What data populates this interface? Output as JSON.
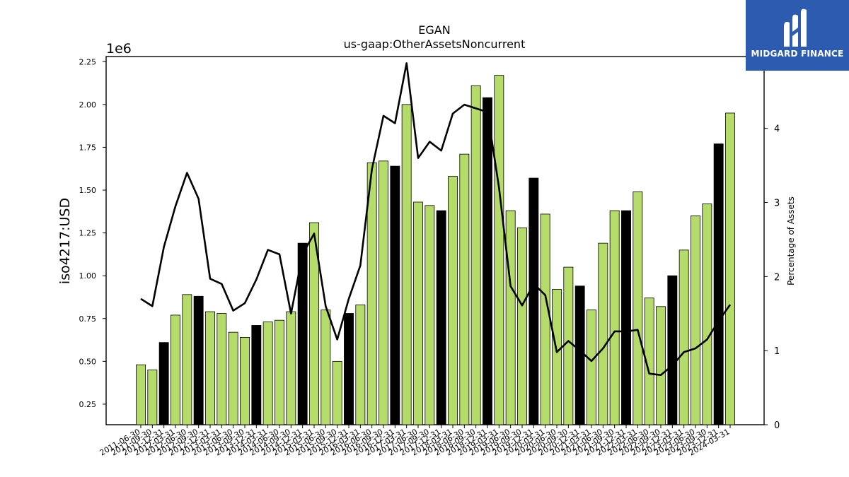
{
  "chart_data": {
    "type": "bar",
    "title": "EGAN",
    "subtitle": "us-gaap:OtherAssetsNoncurrent",
    "ylabel": "iso4217:USD",
    "y2label": "Percentage of Assets",
    "offset_text": "1e6",
    "ylim": [
      0.13,
      2.28
    ],
    "y2lim": [
      0,
      4.97
    ],
    "yticks": [
      "0.25",
      "0.50",
      "0.75",
      "1.00",
      "1.25",
      "1.50",
      "1.75",
      "2.00",
      "2.25"
    ],
    "y2ticks": [
      "0",
      "1",
      "2",
      "3",
      "4"
    ],
    "colors": {
      "quarterly": "#b5dc6a",
      "annual": "#000000",
      "line": "#000000"
    },
    "categories": [
      "2011-06-30",
      "2011-09-30",
      "2011-12-31",
      "2012-03-31",
      "2012-06-30",
      "2012-09-30",
      "2012-12-31",
      "2013-03-31",
      "2013-06-30",
      "2013-09-30",
      "2013-12-31",
      "2014-03-31",
      "2014-06-30",
      "2014-09-30",
      "2014-12-31",
      "2015-03-31",
      "2015-06-30",
      "2015-09-30",
      "2015-12-31",
      "2016-03-31",
      "2016-06-30",
      "2016-09-30",
      "2016-12-31",
      "2017-03-31",
      "2017-06-30",
      "2017-09-30",
      "2017-12-31",
      "2018-03-31",
      "2018-06-30",
      "2018-09-30",
      "2018-12-31",
      "2019-03-31",
      "2019-06-30",
      "2019-09-30",
      "2019-12-31",
      "2020-03-31",
      "2020-06-30",
      "2020-09-30",
      "2020-12-31",
      "2021-03-31",
      "2021-06-30",
      "2021-09-30",
      "2021-12-31",
      "2022-03-31",
      "2022-06-30",
      "2022-09-30",
      "2022-12-31",
      "2023-03-31",
      "2023-06-30",
      "2023-09-30",
      "2023-12-31",
      "2024-03-31"
    ],
    "values": [
      0.48,
      0.45,
      0.61,
      0.77,
      0.89,
      0.88,
      0.79,
      0.78,
      0.67,
      0.64,
      0.71,
      0.73,
      0.74,
      0.79,
      1.19,
      1.31,
      0.8,
      0.5,
      0.78,
      0.83,
      1.66,
      1.67,
      1.64,
      2.0,
      1.43,
      1.41,
      1.38,
      1.58,
      1.71,
      2.11,
      2.04,
      2.17,
      1.38,
      1.28,
      1.57,
      1.36,
      0.92,
      1.05,
      0.94,
      0.8,
      1.19,
      1.38,
      1.38,
      1.49,
      0.87,
      0.82,
      1.0,
      1.15,
      1.35,
      1.42,
      1.77,
      1.95
    ],
    "annual": [
      false,
      false,
      true,
      false,
      false,
      true,
      false,
      false,
      false,
      false,
      true,
      false,
      false,
      false,
      true,
      false,
      false,
      false,
      true,
      false,
      false,
      false,
      true,
      false,
      false,
      false,
      true,
      false,
      false,
      false,
      true,
      false,
      false,
      false,
      true,
      false,
      false,
      false,
      true,
      false,
      false,
      false,
      true,
      false,
      false,
      false,
      true,
      false,
      false,
      false,
      true,
      false
    ],
    "percent_of_assets": [
      1.7,
      1.6,
      2.4,
      2.95,
      3.4,
      3.05,
      1.97,
      1.9,
      1.54,
      1.64,
      1.96,
      2.36,
      2.3,
      1.5,
      2.3,
      2.58,
      1.6,
      1.15,
      1.7,
      2.15,
      3.45,
      4.17,
      4.07,
      4.88,
      3.6,
      3.82,
      3.7,
      4.2,
      4.32,
      4.27,
      4.22,
      3.2,
      1.87,
      1.61,
      1.9,
      1.75,
      0.98,
      1.13,
      1.0,
      0.86,
      1.03,
      1.26,
      1.26,
      1.28,
      0.69,
      0.67,
      0.8,
      0.98,
      1.03,
      1.15,
      1.4,
      1.62
    ]
  },
  "logo": {
    "text": "MIDGARD FINANCE"
  }
}
